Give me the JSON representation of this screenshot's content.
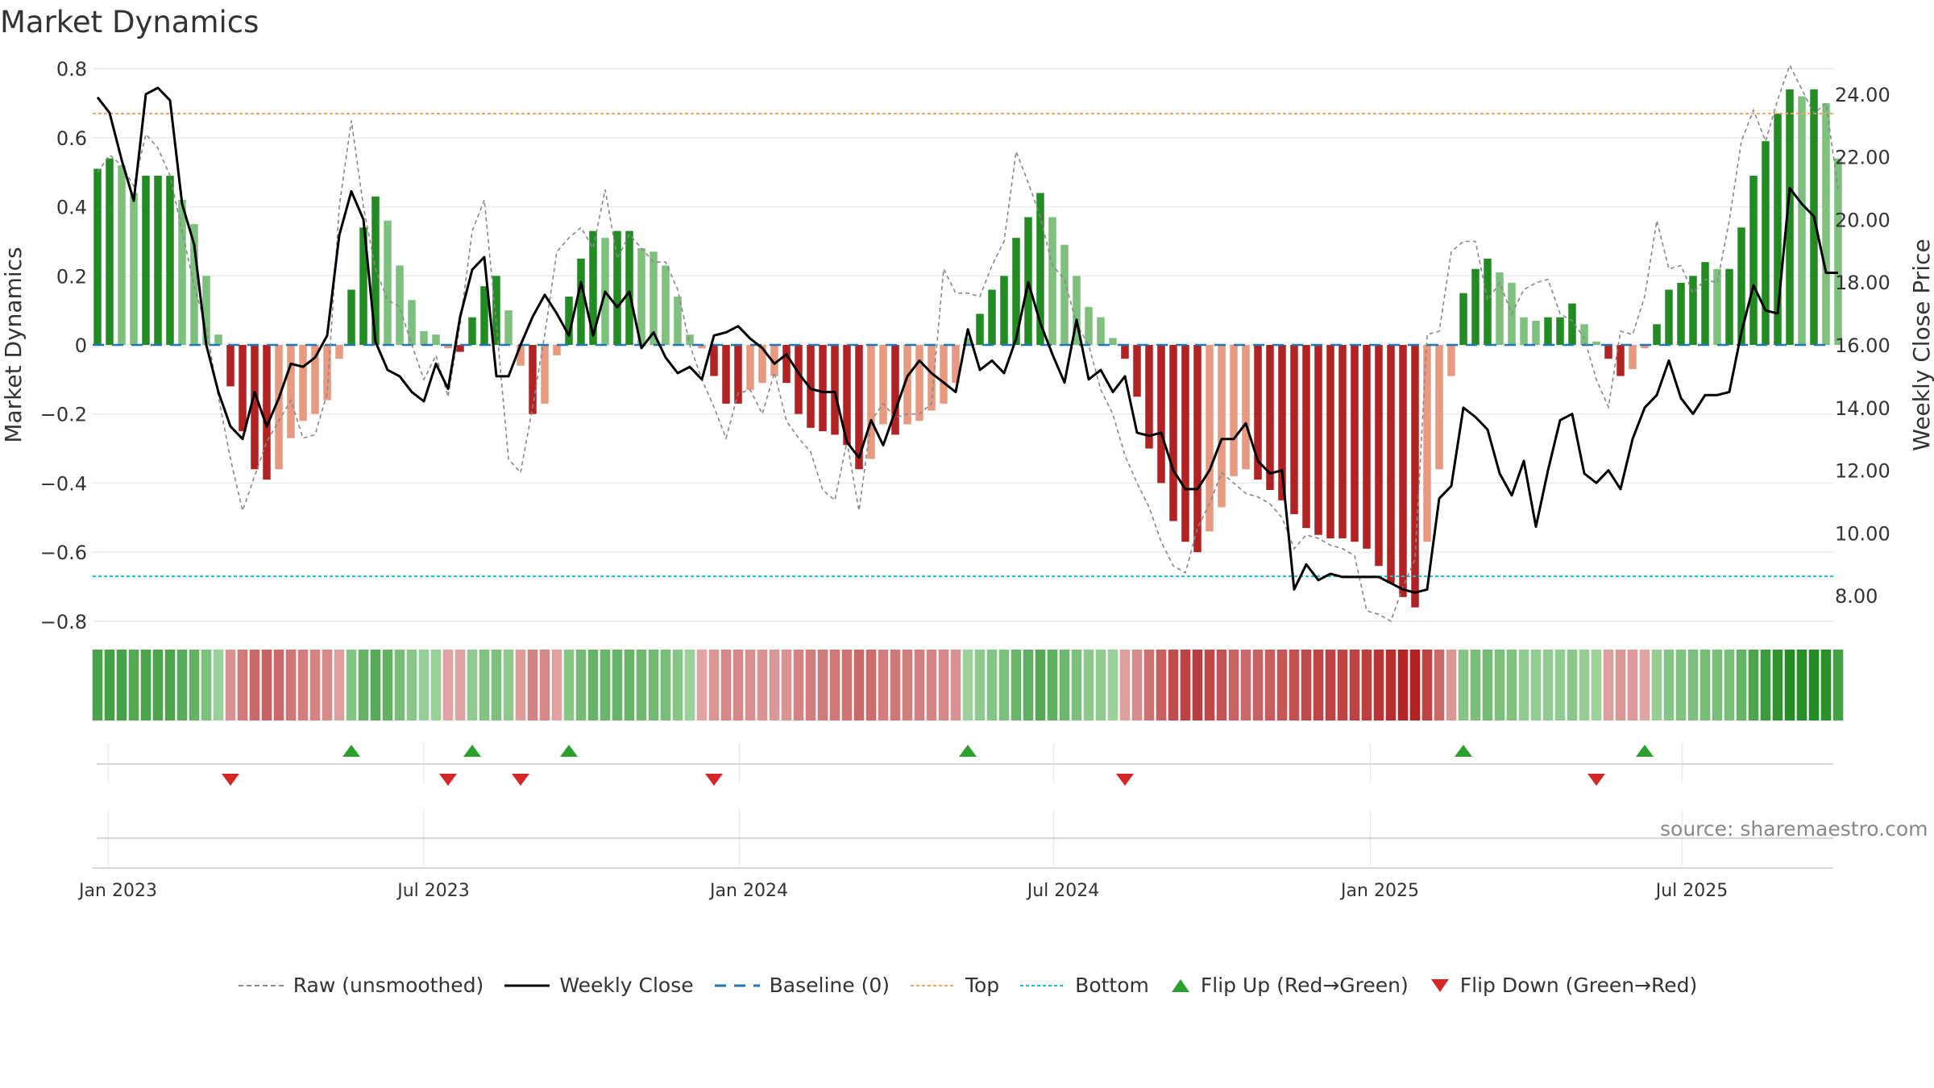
{
  "title": "Market Dynamics",
  "source": "source: sharemaestro.com",
  "legend": {
    "raw": "Raw (unsmoothed)",
    "close": "Weekly Close",
    "baseline": "Baseline (0)",
    "top": "Top",
    "bottom": "Bottom",
    "flip_up": "Flip Up (Red→Green)",
    "flip_down": "Flip Down (Green→Red)"
  },
  "colors": {
    "strong_green": "#228b22",
    "light_green": "#7ec07e",
    "strong_red": "#b22222",
    "light_red": "#e89a80",
    "raw_line": "#888888",
    "close_line": "#000000",
    "baseline": "#1f77b4",
    "top_line": "#f4a261",
    "bottom_line": "#17becf",
    "flip_up": "#2ca02c",
    "flip_down": "#d62728"
  },
  "chart_data": {
    "type": "bar",
    "title": "Market Dynamics",
    "ylabel": "Market Dynamics",
    "y2label": "Weekly Close Price",
    "ylim": [
      -0.83,
      0.8
    ],
    "y2lim": [
      7.0,
      25.0
    ],
    "yticks": [
      "0.8",
      "0.6",
      "0.4",
      "0.2",
      "0",
      "−0.2",
      "−0.4",
      "−0.6",
      "−0.8"
    ],
    "y2ticks": [
      "24.00",
      "22.00",
      "20.00",
      "18.00",
      "16.00",
      "14.00",
      "12.00",
      "10.00",
      "8.00"
    ],
    "xticks": [
      "Jan 2023",
      "Jul 2023",
      "Jan 2024",
      "Jul 2024",
      "Jan 2025",
      "Jul 2025"
    ],
    "start_week": "2022-12-26",
    "top_level": 0.67,
    "bottom_level": -0.67,
    "dynamics": [
      0.51,
      0.54,
      0.52,
      0.44,
      0.49,
      0.49,
      0.49,
      0.42,
      0.35,
      0.2,
      0.03,
      -0.12,
      -0.25,
      -0.36,
      -0.39,
      -0.36,
      -0.27,
      -0.22,
      -0.2,
      -0.16,
      -0.04,
      0.16,
      0.34,
      0.43,
      0.36,
      0.23,
      0.13,
      0.04,
      0.03,
      -0.01,
      -0.02,
      0.08,
      0.17,
      0.2,
      0.1,
      -0.06,
      -0.2,
      -0.17,
      -0.03,
      0.14,
      0.25,
      0.33,
      0.31,
      0.33,
      0.33,
      0.28,
      0.27,
      0.23,
      0.14,
      0.03,
      -0.01,
      -0.09,
      -0.17,
      -0.17,
      -0.13,
      -0.11,
      -0.09,
      -0.11,
      -0.2,
      -0.24,
      -0.25,
      -0.26,
      -0.29,
      -0.36,
      -0.33,
      -0.23,
      -0.26,
      -0.23,
      -0.22,
      -0.19,
      -0.17,
      -0.11,
      0.02,
      0.09,
      0.16,
      0.2,
      0.31,
      0.37,
      0.44,
      0.37,
      0.29,
      0.2,
      0.11,
      0.08,
      0.02,
      -0.04,
      -0.15,
      -0.3,
      -0.4,
      -0.51,
      -0.57,
      -0.6,
      -0.54,
      -0.47,
      -0.38,
      -0.36,
      -0.39,
      -0.42,
      -0.45,
      -0.49,
      -0.53,
      -0.55,
      -0.56,
      -0.56,
      -0.57,
      -0.59,
      -0.64,
      -0.69,
      -0.73,
      -0.76,
      -0.57,
      -0.36,
      -0.09,
      0.15,
      0.22,
      0.25,
      0.21,
      0.18,
      0.08,
      0.07,
      0.08,
      0.08,
      0.12,
      0.06,
      0.01,
      -0.04,
      -0.09,
      -0.07,
      -0.01,
      0.06,
      0.16,
      0.18,
      0.2,
      0.24,
      0.22,
      0.22,
      0.34,
      0.49,
      0.59,
      0.67,
      0.74,
      0.72,
      0.74,
      0.7,
      0.54
    ],
    "raw": [
      0.5,
      0.55,
      0.52,
      0.46,
      0.61,
      0.57,
      0.49,
      0.33,
      0.17,
      0.05,
      -0.15,
      -0.33,
      -0.48,
      -0.38,
      -0.28,
      -0.22,
      -0.16,
      -0.27,
      -0.26,
      -0.14,
      0.4,
      0.65,
      0.4,
      0.22,
      0.13,
      0.11,
      0.0,
      -0.1,
      -0.03,
      -0.15,
      0.06,
      0.33,
      0.42,
      0.06,
      -0.33,
      -0.37,
      -0.18,
      0.03,
      0.27,
      0.31,
      0.34,
      0.28,
      0.45,
      0.25,
      0.32,
      0.28,
      0.24,
      0.24,
      0.16,
      0.0,
      -0.1,
      -0.18,
      -0.27,
      -0.14,
      -0.13,
      -0.2,
      -0.08,
      -0.22,
      -0.27,
      -0.31,
      -0.42,
      -0.45,
      -0.28,
      -0.48,
      -0.22,
      -0.17,
      -0.21,
      -0.2,
      -0.2,
      -0.17,
      0.22,
      0.15,
      0.15,
      0.14,
      0.23,
      0.3,
      0.56,
      0.47,
      0.37,
      0.23,
      0.19,
      0.06,
      0.0,
      -0.13,
      -0.2,
      -0.32,
      -0.4,
      -0.47,
      -0.57,
      -0.64,
      -0.66,
      -0.53,
      -0.46,
      -0.37,
      -0.4,
      -0.43,
      -0.44,
      -0.46,
      -0.5,
      -0.59,
      -0.55,
      -0.56,
      -0.58,
      -0.59,
      -0.61,
      -0.77,
      -0.78,
      -0.8,
      -0.7,
      -0.62,
      0.03,
      0.04,
      0.27,
      0.3,
      0.3,
      0.13,
      0.18,
      0.09,
      0.16,
      0.18,
      0.19,
      0.09,
      0.07,
      0.02,
      -0.1,
      -0.18,
      0.04,
      0.03,
      0.14,
      0.36,
      0.22,
      0.23,
      0.15,
      0.19,
      0.18,
      0.36,
      0.59,
      0.68,
      0.59,
      0.71,
      0.81,
      0.74,
      0.67,
      0.7,
      0.45
    ],
    "close": [
      23.9,
      23.4,
      21.9,
      20.6,
      24.0,
      24.2,
      23.8,
      20.5,
      19.2,
      16.0,
      14.5,
      13.4,
      13.0,
      14.5,
      13.4,
      14.3,
      15.4,
      15.3,
      15.6,
      16.3,
      19.5,
      20.9,
      20.0,
      16.1,
      15.2,
      15.0,
      14.5,
      14.2,
      15.4,
      14.6,
      16.9,
      18.4,
      18.8,
      15.0,
      15.0,
      16.0,
      16.9,
      17.6,
      17.0,
      16.3,
      18.0,
      16.3,
      17.7,
      17.2,
      17.7,
      15.9,
      16.4,
      15.6,
      15.1,
      15.3,
      14.9,
      16.3,
      16.4,
      16.6,
      16.2,
      15.9,
      15.4,
      15.7,
      15.1,
      14.6,
      14.5,
      14.5,
      12.9,
      12.4,
      13.6,
      12.8,
      13.9,
      15.0,
      15.5,
      15.1,
      14.8,
      14.5,
      16.5,
      15.2,
      15.5,
      15.1,
      16.2,
      18.0,
      16.7,
      15.7,
      14.8,
      16.8,
      14.9,
      15.2,
      14.5,
      15.0,
      13.2,
      13.1,
      13.2,
      12.0,
      11.4,
      11.4,
      12.0,
      13.0,
      13.0,
      13.5,
      12.3,
      11.9,
      12.0,
      8.2,
      9.0,
      8.5,
      8.7,
      8.6,
      8.6,
      8.6,
      8.6,
      8.4,
      8.2,
      8.1,
      8.2,
      11.1,
      11.5,
      14.0,
      13.7,
      13.3,
      11.9,
      11.2,
      12.3,
      10.2,
      12.0,
      13.6,
      13.8,
      11.9,
      11.6,
      12.0,
      11.4,
      13.0,
      14.0,
      14.4,
      15.5,
      14.3,
      13.8,
      14.4,
      14.4,
      14.5,
      16.4,
      17.9,
      17.1,
      17.0,
      21.0,
      20.5,
      20.1,
      18.3,
      18.3
    ],
    "flip_up_weeks": [
      21,
      31,
      39,
      72,
      113,
      128
    ],
    "flip_down_weeks": [
      11,
      29,
      35,
      51,
      85,
      124
    ]
  }
}
